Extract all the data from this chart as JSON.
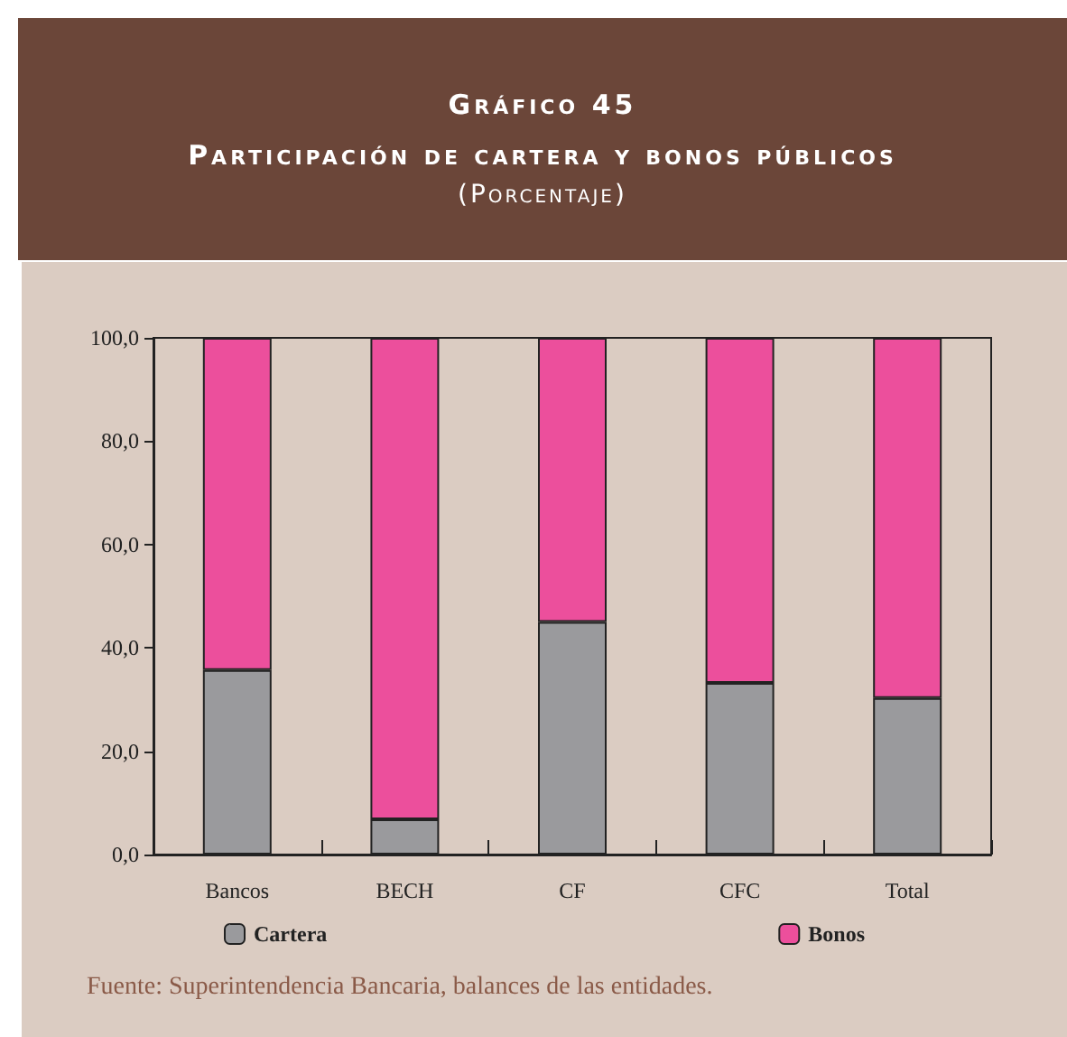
{
  "chart_data": {
    "type": "bar",
    "title": "Gráfico 45\nParticipación de cartera y bonos públicos",
    "subtitle": "(Porcentaje)",
    "categories": [
      "Bancos",
      "BECH",
      "CF",
      "CFC",
      "Total"
    ],
    "series": [
      {
        "name": "Cartera",
        "color": "#9a9a9d",
        "values": [
          35.7,
          6.8,
          45.0,
          33.2,
          30.3
        ]
      },
      {
        "name": "Bonos",
        "color": "#ec4f9c",
        "values": [
          64.3,
          93.2,
          55.0,
          66.8,
          69.7
        ]
      }
    ],
    "stacked": true,
    "ylim": [
      0,
      100
    ],
    "yticks": [
      {
        "value": 0,
        "label": "0,0"
      },
      {
        "value": 20,
        "label": "20,0"
      },
      {
        "value": 40,
        "label": "40,0"
      },
      {
        "value": 60,
        "label": "60,0"
      },
      {
        "value": 80,
        "label": "80,0"
      },
      {
        "value": 100,
        "label": "100,0"
      }
    ],
    "grid": false,
    "legend": "bottom",
    "annotations": [
      "Fuente: Superintendencia Bancaria, balances de las entidades."
    ]
  }
}
